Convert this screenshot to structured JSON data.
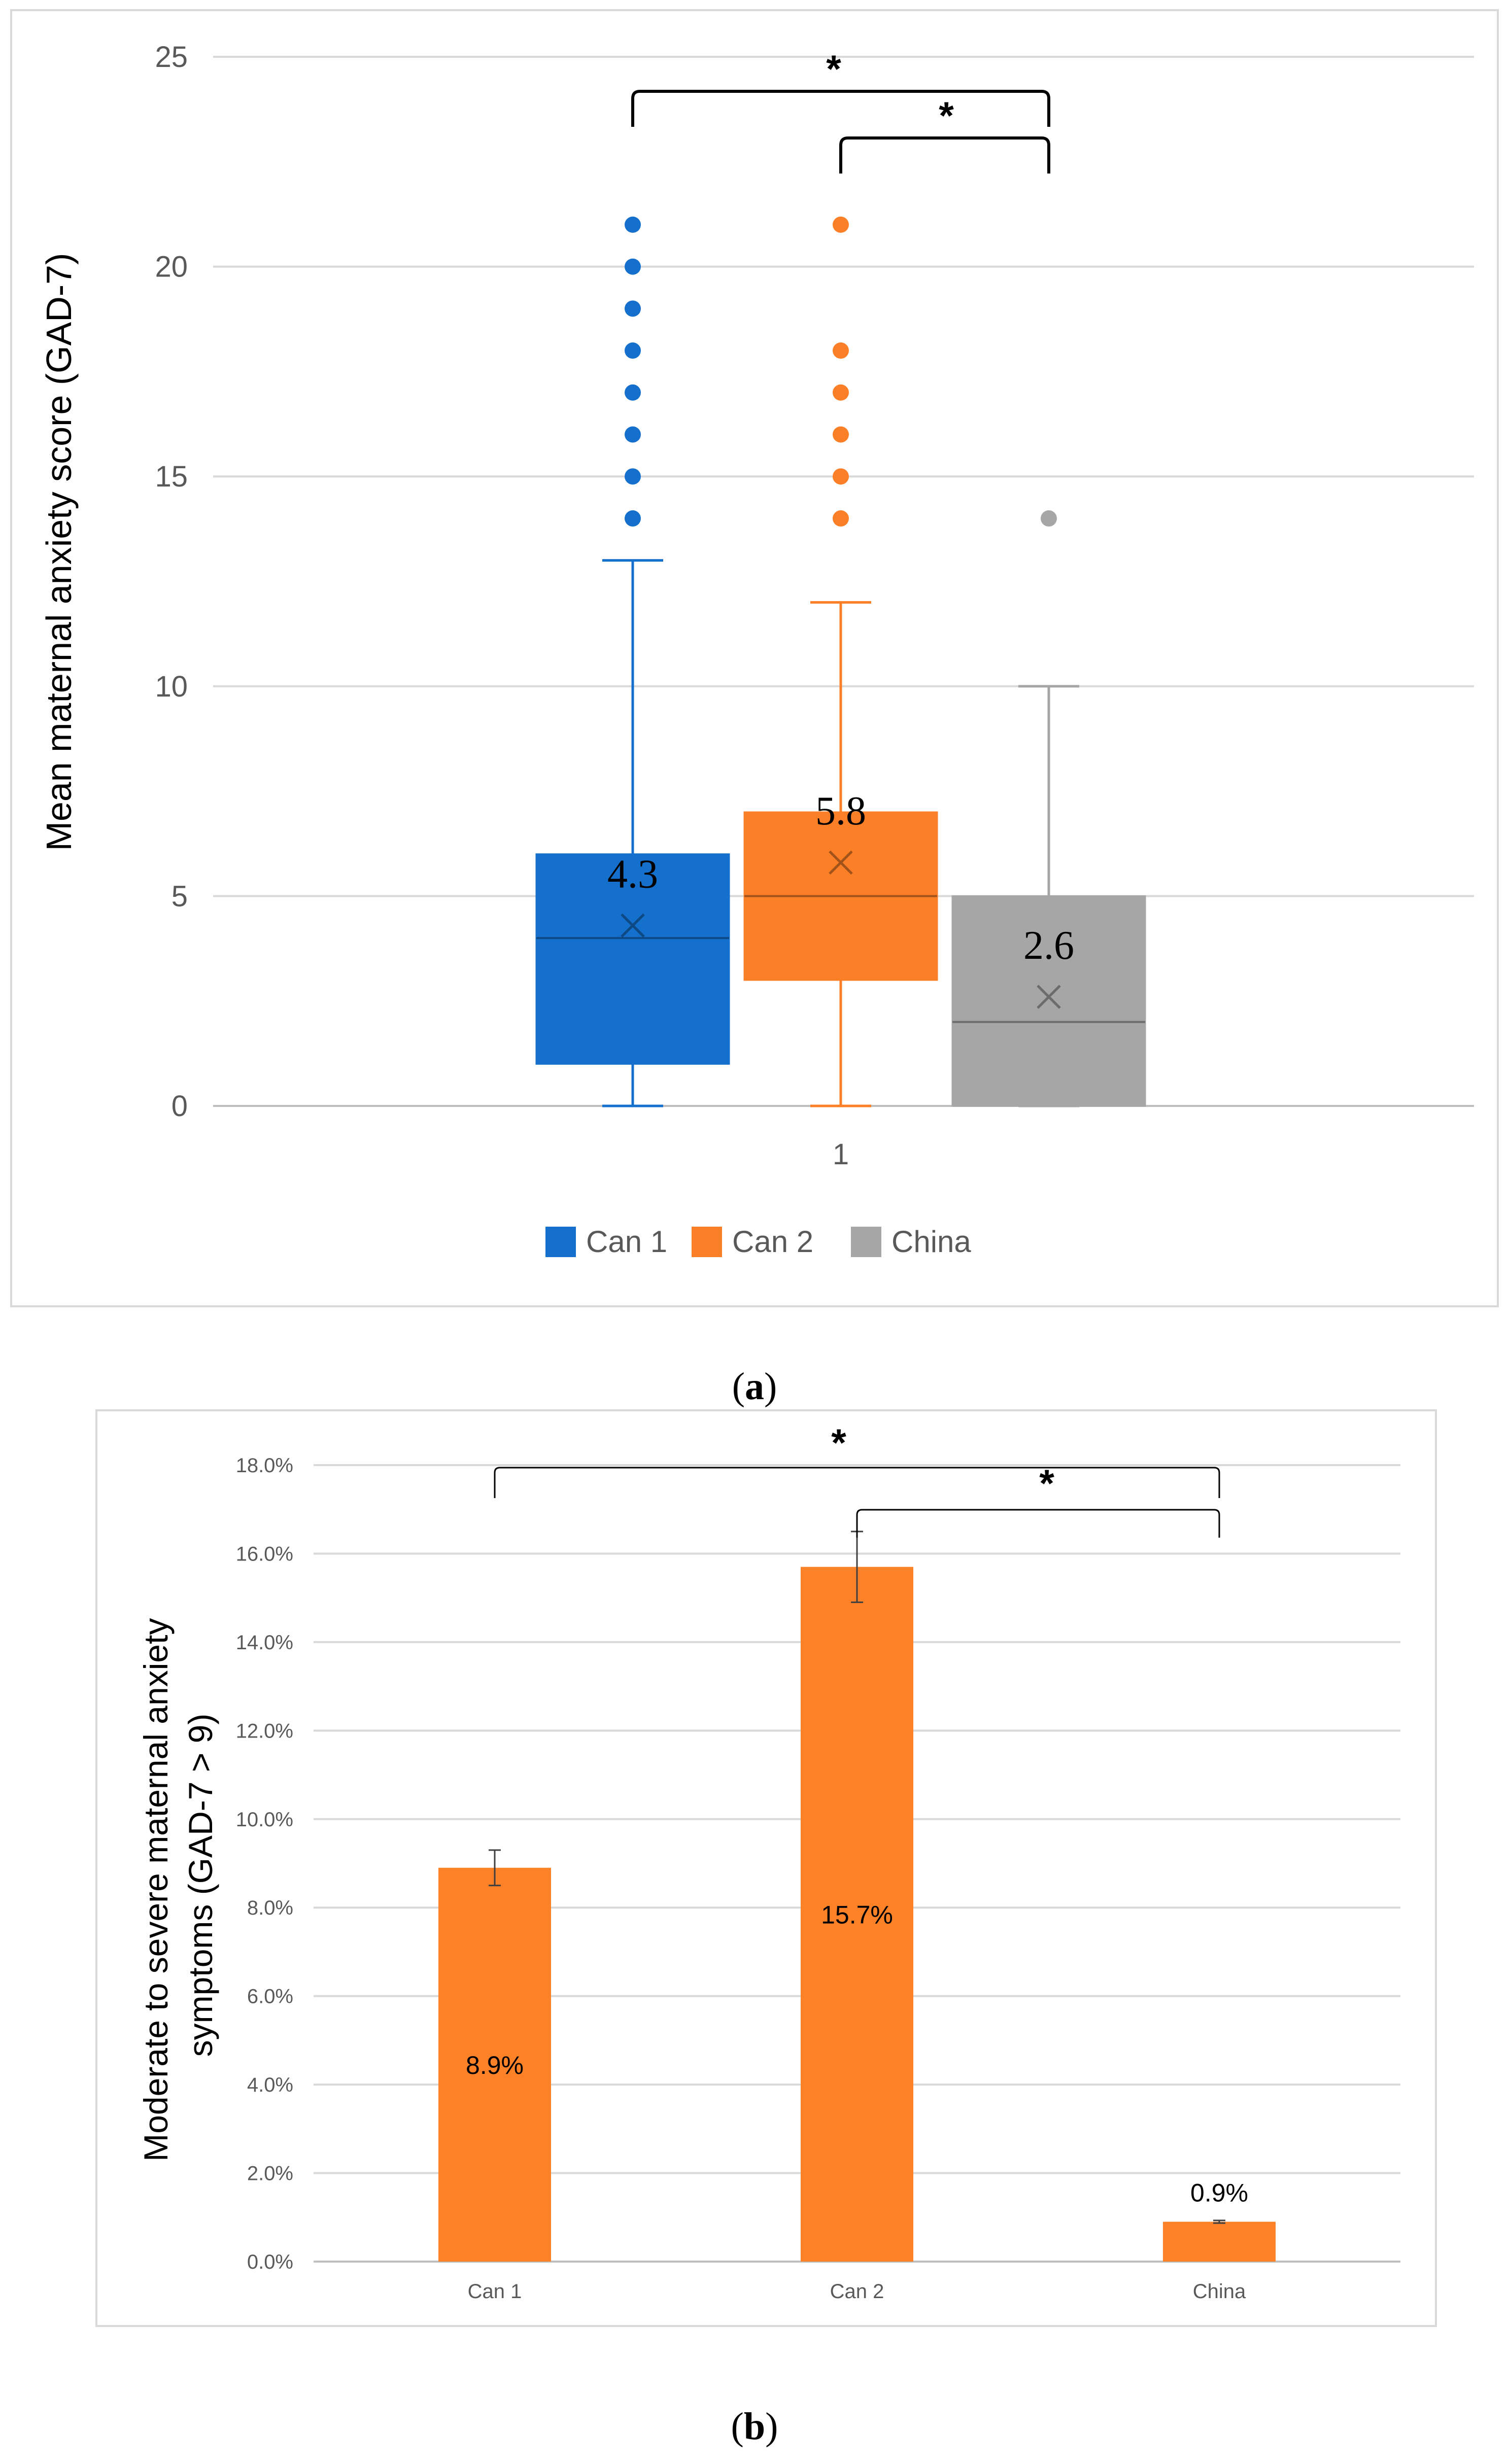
{
  "colors": {
    "can1": "#1470cc",
    "can2": "#fb7f27",
    "china": "#a6a6a6",
    "bar": "#fd8227"
  },
  "chart_data": [
    {
      "type": "box",
      "panel_caption_letter": "a",
      "title": "",
      "ylabel": "Mean maternal anxiety score (GAD-7)",
      "xlabel": "",
      "x_category": "1",
      "ylim": [
        0,
        25
      ],
      "yticks": [
        "0",
        "5",
        "10",
        "15",
        "20",
        "25"
      ],
      "grid": true,
      "legend": [
        "Can 1",
        "Can 2",
        "China"
      ],
      "legend_position": "bottom",
      "series": [
        {
          "name": "Can 1",
          "min": 0,
          "q1": 1,
          "median": 4,
          "q3": 6,
          "max": 13,
          "mean": 4.3,
          "mean_label": "4.3",
          "outliers": [
            14,
            15,
            16,
            17,
            18,
            19,
            20,
            21
          ]
        },
        {
          "name": "Can 2",
          "min": 0,
          "q1": 3,
          "median": 5,
          "q3": 7,
          "max": 12,
          "mean": 5.8,
          "mean_label": "5.8",
          "outliers": [
            14,
            15,
            16,
            17,
            18,
            21
          ]
        },
        {
          "name": "China",
          "min": 0,
          "q1": 0,
          "median": 2,
          "q3": 5,
          "max": 10,
          "mean": 2.6,
          "mean_label": "2.6",
          "outliers": [
            14
          ]
        }
      ],
      "significance": [
        {
          "from": "Can 1",
          "to": "China",
          "mark": "*"
        },
        {
          "from": "Can 2",
          "to": "China",
          "mark": "*"
        }
      ]
    },
    {
      "type": "bar",
      "panel_caption_letter": "b",
      "title": "",
      "ylabel_lines": [
        "Moderate to severe maternal anxiety",
        "symptoms (GAD-7 > 9)"
      ],
      "xlabel": "",
      "categories": [
        "Can 1",
        "Can 2",
        "China"
      ],
      "values": [
        8.9,
        15.7,
        0.9
      ],
      "value_labels": [
        "8.9%",
        "15.7%",
        "0.9%"
      ],
      "error": [
        0.4,
        0.8,
        0.03
      ],
      "ylim": [
        0,
        18
      ],
      "yticks": [
        "0.0%",
        "2.0%",
        "4.0%",
        "6.0%",
        "8.0%",
        "10.0%",
        "12.0%",
        "14.0%",
        "16.0%",
        "18.0%"
      ],
      "grid": true,
      "significance": [
        {
          "from": "Can 1",
          "to": "China",
          "mark": "*"
        },
        {
          "from": "Can 2",
          "to": "China",
          "mark": "*"
        }
      ]
    }
  ]
}
